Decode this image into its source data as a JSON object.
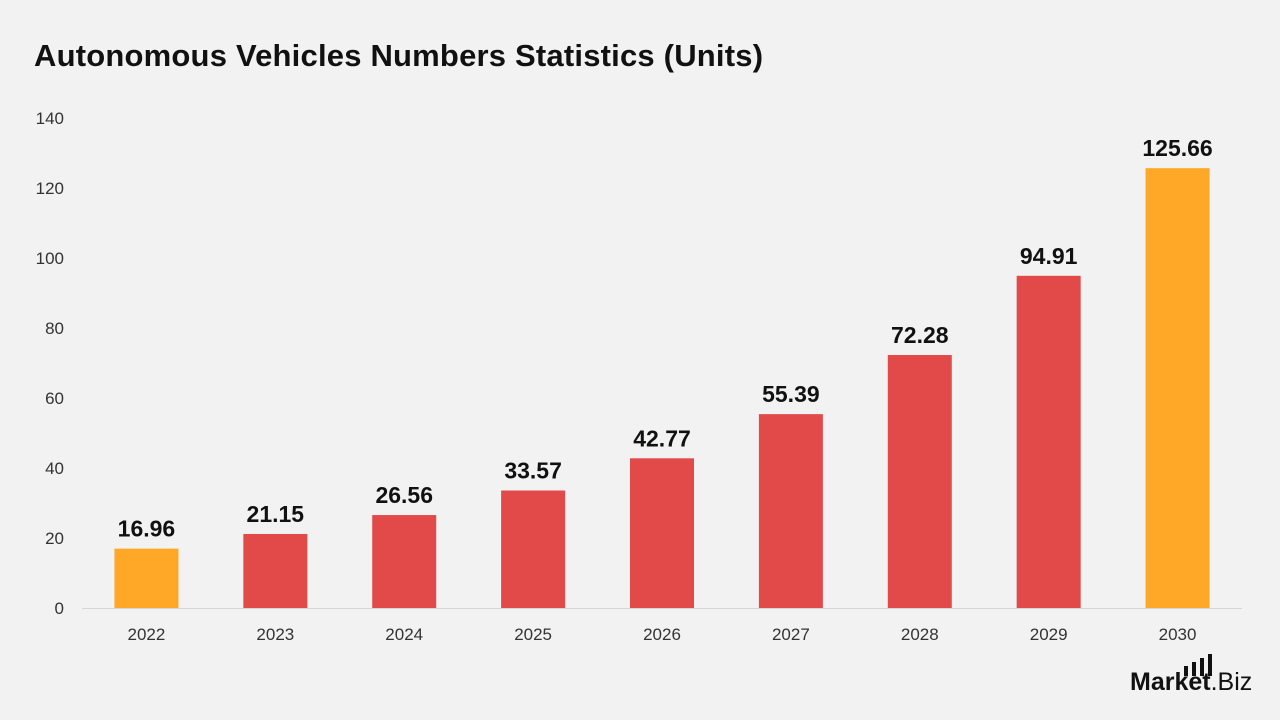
{
  "chart_data": {
    "type": "bar",
    "title": "Autonomous Vehicles Numbers Statistics (Units)",
    "xlabel": "",
    "ylabel": "",
    "categories": [
      "2022",
      "2023",
      "2024",
      "2025",
      "2026",
      "2027",
      "2028",
      "2029",
      "2030"
    ],
    "values": [
      16.96,
      21.15,
      26.56,
      33.57,
      42.77,
      55.39,
      72.28,
      94.91,
      125.66
    ],
    "data_labels": [
      "16.96",
      "21.15",
      "26.56",
      "33.57",
      "42.77",
      "55.39",
      "72.28",
      "94.91",
      "125.66"
    ],
    "highlight": [
      true,
      false,
      false,
      false,
      false,
      false,
      false,
      false,
      true
    ],
    "ylim": [
      0,
      140
    ],
    "yticks": [
      "0",
      "20",
      "40",
      "60",
      "80",
      "100",
      "120",
      "140"
    ],
    "grid": false,
    "legend": "none",
    "colors": {
      "default": "#e24a4a",
      "highlight": "#ffa726",
      "background": "#f2f2f2"
    }
  },
  "brand": {
    "logo_text_bold": "Market",
    "logo_text_regular": ".Biz"
  }
}
